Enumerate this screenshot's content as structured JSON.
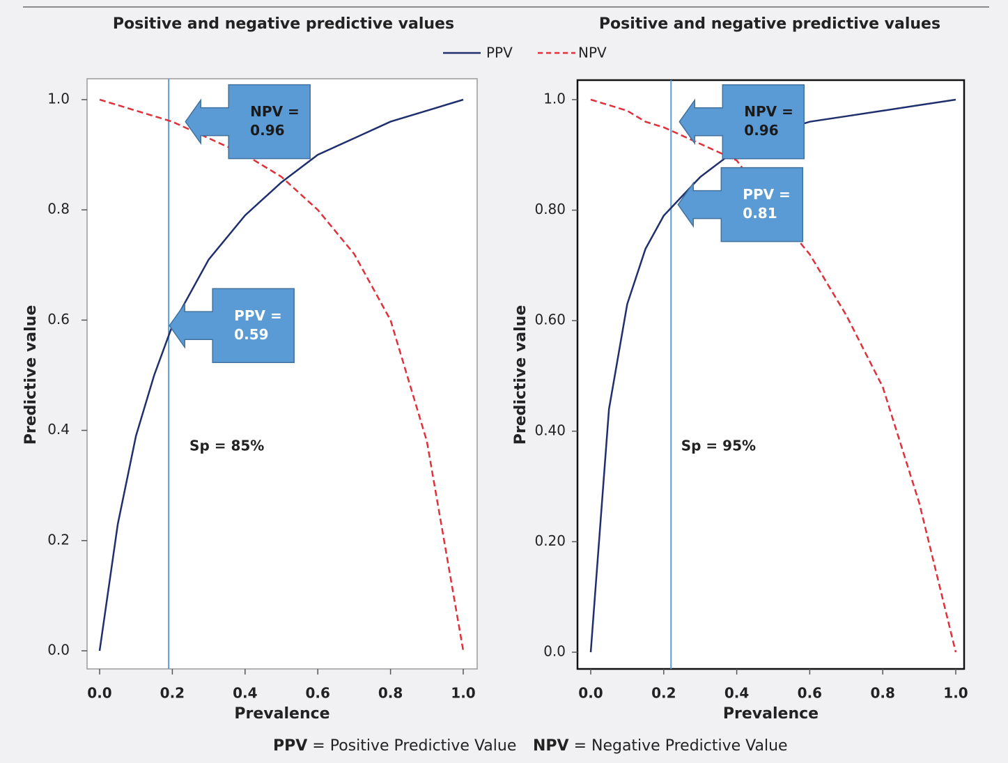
{
  "chart_data": [
    {
      "type": "line",
      "title": "Positive and negative predictive values",
      "xlabel": "Prevalence",
      "ylabel": "Predictive value",
      "x": [
        0,
        0.05,
        0.1,
        0.15,
        0.2,
        0.3,
        0.4,
        0.5,
        0.6,
        0.7,
        0.8,
        0.9,
        1.0
      ],
      "series": [
        {
          "name": "PPV",
          "color": "#1f2f6e",
          "dashed": false,
          "values": [
            0,
            0.23,
            0.39,
            0.5,
            0.59,
            0.71,
            0.79,
            0.85,
            0.9,
            0.93,
            0.96,
            0.98,
            1.0
          ]
        },
        {
          "name": "NPV",
          "color": "#e0303a",
          "dashed": true,
          "values": [
            1.0,
            0.99,
            0.98,
            0.97,
            0.96,
            0.93,
            0.9,
            0.86,
            0.8,
            0.72,
            0.6,
            0.38,
            0
          ]
        }
      ],
      "xlim": [
        -0.035,
        1.035
      ],
      "ylim": [
        -0.033,
        1.04
      ],
      "xticks": [
        {
          "value": 0,
          "label": "0.0"
        },
        0.2,
        0.4,
        0.6,
        0.8,
        {
          "value": 1,
          "label": "1.0"
        }
      ],
      "yticks": [
        {
          "value": 0,
          "label": "0.0"
        },
        0.2,
        0.4,
        0.6,
        0.8,
        {
          "value": 1,
          "label": "1.0"
        }
      ],
      "vline": 0.19,
      "vline_color": "#5a9bd5",
      "frame_color": "#999999",
      "note": "Sp = 85%",
      "callouts": [
        {
          "label": "NPV =",
          "value": 0.96,
          "text_color": "#1a1a1a"
        },
        {
          "label": "PPV =",
          "value": 0.59,
          "text_color": "#ffffff"
        }
      ]
    },
    {
      "type": "line",
      "title": "Positive and negative predictive values",
      "xlabel": "Prevalence",
      "ylabel": "Predictive value",
      "x": [
        0,
        0.05,
        0.1,
        0.15,
        0.2,
        0.3,
        0.4,
        0.5,
        0.6,
        0.7,
        0.8,
        0.9,
        1.0
      ],
      "series": [
        {
          "name": "PPV",
          "color": "#1f2f6e",
          "dashed": false,
          "values": [
            0,
            0.44,
            0.63,
            0.73,
            0.79,
            0.86,
            0.91,
            0.94,
            0.96,
            0.97,
            0.98,
            0.99,
            1.0
          ]
        },
        {
          "name": "NPV",
          "color": "#e0303a",
          "dashed": true,
          "values": [
            1.0,
            0.99,
            0.98,
            0.96,
            0.95,
            0.92,
            0.89,
            0.8,
            0.72,
            0.61,
            0.48,
            0.27,
            0
          ]
        }
      ],
      "xlim": [
        -0.036,
        1.023
      ],
      "ylim": [
        -0.03,
        1.035
      ],
      "xticks": [
        {
          "value": 0,
          "label": "0.0"
        },
        0.2,
        0.4,
        0.6,
        0.8,
        {
          "value": 1,
          "label": "1.0"
        }
      ],
      "yticks": [
        {
          "value": 0,
          "label": "0.0"
        },
        {
          "value": 0.2,
          "label": "0.20"
        },
        {
          "value": 0.4,
          "label": "0.40"
        },
        {
          "value": 0.6,
          "label": "0.60"
        },
        {
          "value": 0.8,
          "label": "0.80"
        },
        {
          "value": 1,
          "label": "1.0"
        }
      ],
      "vline": 0.22,
      "vline_color": "#5a9bd5",
      "frame_color": "#111111",
      "note": "Sp = 95%",
      "callouts": [
        {
          "label": "NPV =",
          "value": 0.96,
          "text_color": "#1a1a1a"
        },
        {
          "label": "PPV =",
          "value": 0.81,
          "text_color": "#ffffff"
        }
      ]
    }
  ],
  "footnote": [
    {
      "abbr": "PPV",
      "text": "= Positive Predictive Value"
    },
    {
      "abbr": "NPV",
      "text": "= Negative Predictive Value"
    }
  ]
}
